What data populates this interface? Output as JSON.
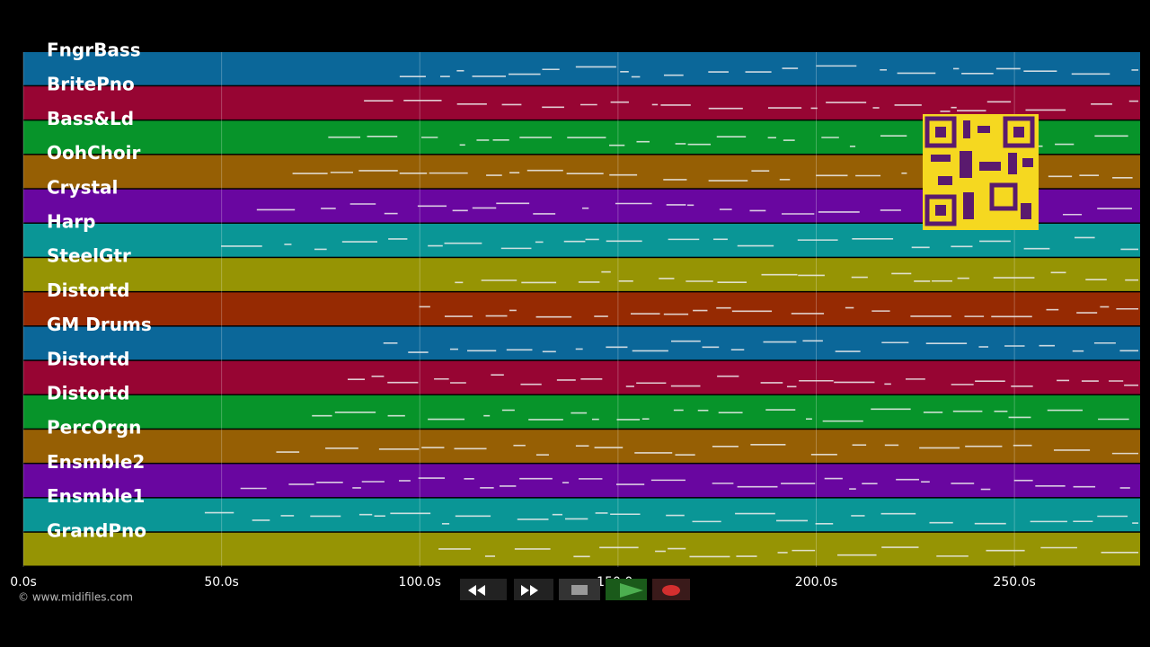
{
  "timeline": {
    "xlim": [
      0,
      281.7
    ],
    "xticks": [
      {
        "value": 0,
        "label": "0.0s"
      },
      {
        "value": 50,
        "label": "50.0s"
      },
      {
        "value": 100,
        "label": "100.0s"
      },
      {
        "value": 150,
        "label": "150.0s"
      },
      {
        "value": 200,
        "label": "200.0s"
      },
      {
        "value": 250,
        "label": "250.0s"
      }
    ],
    "grid": true,
    "tracks": [
      {
        "name": "FngrBass",
        "color": "#0b6799"
      },
      {
        "name": "BritePno",
        "color": "#970533"
      },
      {
        "name": "Bass&Ld",
        "color": "#07942a"
      },
      {
        "name": "OohChoir",
        "color": "#965f04"
      },
      {
        "name": "Crystal",
        "color": "#6906a0"
      },
      {
        "name": "Harp",
        "color": "#0a9696"
      },
      {
        "name": "SteelGtr",
        "color": "#969404"
      },
      {
        "name": "Distortd",
        "color": "#962a02"
      },
      {
        "name": "GM Drums",
        "color": "#0b6799"
      },
      {
        "name": "Distortd",
        "color": "#970533"
      },
      {
        "name": "Distortd",
        "color": "#07942a"
      },
      {
        "name": "PercOrgn",
        "color": "#965f04"
      },
      {
        "name": "Ensmble2",
        "color": "#6906a0"
      },
      {
        "name": "Ensmble1",
        "color": "#0a9696"
      },
      {
        "name": "GrandPno",
        "color": "#969404"
      }
    ]
  },
  "footer": {
    "copyright": "© www.midifiles.com"
  }
}
